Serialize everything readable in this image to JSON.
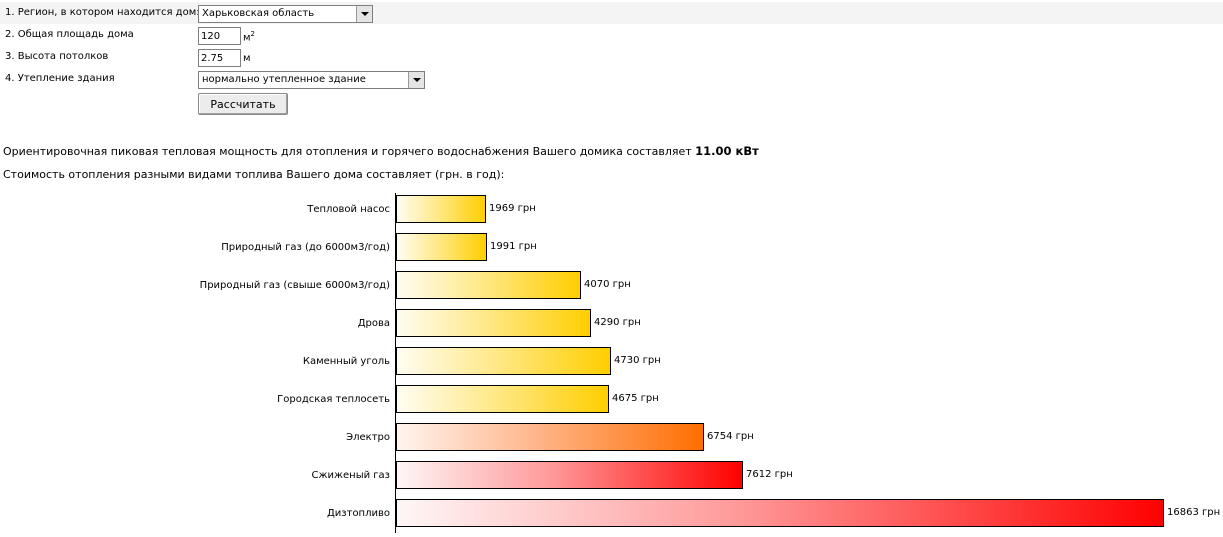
{
  "form": {
    "region_label": "1. Регион, в котором находится дом:",
    "region_value": "Харьковская область",
    "area_label": "2. Общая площадь дома",
    "area_value": "120",
    "area_unit": "м",
    "area_unit_sup": "2",
    "height_label": "3. Высота потолков",
    "height_value": "2.75",
    "height_unit": "м",
    "insulation_label": "4. Утепление здания",
    "insulation_value": "нормально утепленное здание",
    "calculate_button": "Рассчитать"
  },
  "result": {
    "power_text": "Ориентировочная пиковая тепловая мощность для отопления и горячего водоснабжения Вашего домика составляет",
    "power_value": "11.00 кВт",
    "cost_text": "Стоимость отопления разными видами топлива Вашего дома составляет (грн. в год):"
  },
  "colors": {
    "yellow": "#ffce00",
    "orange": "#ff6e00",
    "red": "#ff0000"
  },
  "chart_data": {
    "type": "bar",
    "orientation": "horizontal",
    "categories": [
      "Тепловой насос",
      "Природный газ (до 6000м3/год)",
      "Природный газ (свыше 6000м3/год)",
      "Дрова",
      "Каменный уголь",
      "Городская теплосеть",
      "Электро",
      "Сжиженый газ",
      "Дизтопливо"
    ],
    "values": [
      1969,
      1991,
      4070,
      4290,
      4730,
      4675,
      6754,
      7612,
      16863
    ],
    "value_labels": [
      "1969 грн",
      "1991 грн",
      "4070 грн",
      "4290 грн",
      "4730 грн",
      "4675 грн",
      "6754 грн",
      "7612 грн",
      "16863 грн"
    ],
    "bar_colors": [
      "yellow",
      "yellow",
      "yellow",
      "yellow",
      "yellow",
      "yellow",
      "orange",
      "red",
      "red"
    ],
    "xlim": [
      0,
      16863
    ]
  }
}
